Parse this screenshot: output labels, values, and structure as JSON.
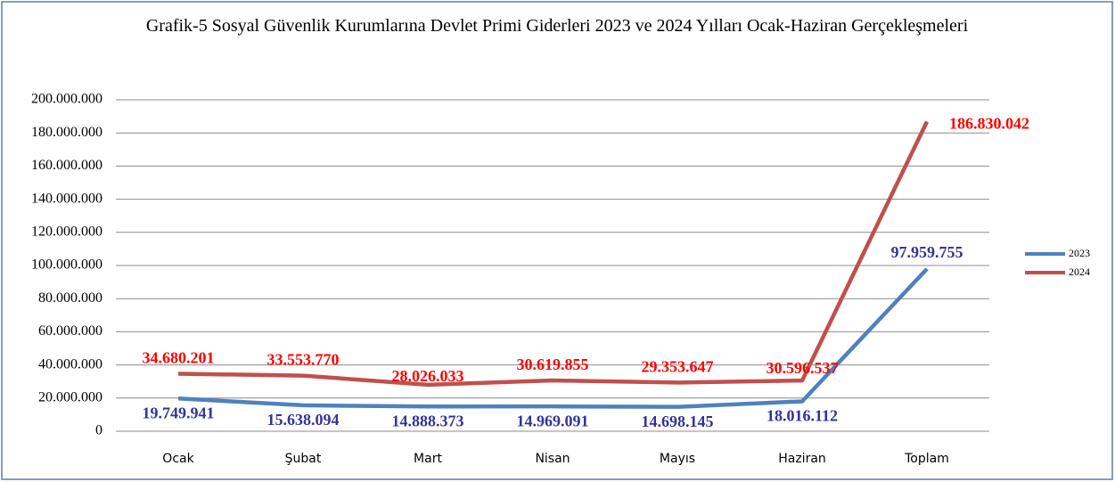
{
  "chart_data": {
    "type": "line",
    "title": "Grafik-5 Sosyal Güvenlik Kurumlarına Devlet Primi Giderleri 2023 ve 2024 Yılları Ocak-Haziran Gerçekleşmeleri",
    "categories": [
      "Ocak",
      "Şubat",
      "Mart",
      "Nisan",
      "Mayıs",
      "Haziran",
      "Toplam"
    ],
    "series": [
      {
        "name": "2023",
        "color": "#4f81bd",
        "label_color": "#333399",
        "values": [
          19749941,
          15638094,
          14888373,
          14969091,
          14698145,
          18016112,
          97959755
        ],
        "value_labels": [
          "19.749.941",
          "15.638.094",
          "14.888.373",
          "14.969.091",
          "14.698.145",
          "18.016.112",
          "97.959.755"
        ]
      },
      {
        "name": "2024",
        "color": "#c0504d",
        "label_color": "#ff0000",
        "values": [
          34680201,
          33553770,
          28026033,
          30619855,
          29353647,
          30596537,
          186830042
        ],
        "value_labels": [
          "34.680.201",
          "33.553.770",
          "28.026.033",
          "30.619.855",
          "29.353.647",
          "30.596.537",
          "186.830.042"
        ]
      }
    ],
    "ylim": [
      0,
      200000000
    ],
    "yticks": [
      0,
      {
        "value": 20000000,
        "label": "20.000.000"
      },
      {
        "value": 40000000,
        "label": "40.000.000"
      },
      {
        "value": 60000000,
        "label": "60.000.000"
      },
      {
        "value": 80000000,
        "label": "80.000.000"
      },
      {
        "value": 100000000,
        "label": "100.000.000"
      },
      {
        "value": 120000000,
        "label": "120.000.000"
      },
      {
        "value": 140000000,
        "label": "140.000.000"
      },
      {
        "value": 160000000,
        "label": "160.000.000"
      },
      {
        "value": 180000000,
        "label": "180.000.000"
      },
      {
        "value": 200000000,
        "label": "200.000.000"
      }
    ],
    "grid": true,
    "legend": "right"
  }
}
